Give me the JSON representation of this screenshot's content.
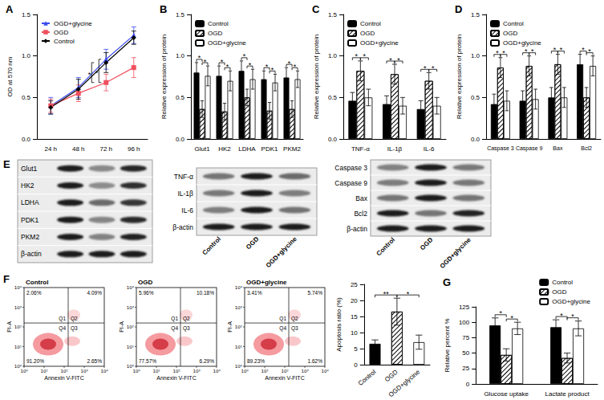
{
  "chart_data": [
    {
      "type": "line",
      "title": "A",
      "y_label": "OD at 570 nm",
      "categories": [
        "24 h",
        "48 h",
        "72 h",
        "96 h"
      ],
      "series": [
        {
          "name": "OGD+glycine",
          "color": "#3b4cf0",
          "marker": "triangle",
          "values": [
            0.4,
            0.62,
            0.96,
            1.25
          ],
          "errors": [
            0.1,
            0.12,
            0.12,
            0.1
          ]
        },
        {
          "name": "OGD",
          "color": "#f0505f",
          "marker": "square",
          "values": [
            0.4,
            0.55,
            0.68,
            0.86
          ],
          "errors": [
            0.08,
            0.1,
            0.1,
            0.12
          ]
        },
        {
          "name": "Control",
          "color": "#000000",
          "marker": "diamond",
          "values": [
            0.38,
            0.6,
            0.92,
            1.22
          ],
          "errors": [
            0.08,
            0.12,
            0.12,
            0.08
          ]
        }
      ],
      "ylim": [
        0,
        1.5
      ],
      "yticks": [
        {
          "value": 0,
          "label": "0.0"
        },
        0.5,
        {
          "value": 1,
          "label": "1.0"
        },
        1.5
      ],
      "grid": false,
      "legend": "upper left",
      "annotations": [
        {
          "x": "72 h",
          "pair": [
            0,
            1
          ],
          "text": "*"
        },
        {
          "x": "72 h",
          "pair": [
            1,
            2
          ],
          "text": "*"
        }
      ]
    },
    {
      "type": "bar",
      "title": "B",
      "y_label": "Relative expression of protein",
      "categories": [
        "Glut1",
        "HK2",
        "LDHA",
        "PDK1",
        "PKM2"
      ],
      "series": [
        {
          "name": "Control",
          "color": "#000000",
          "values": [
            0.8,
            0.76,
            0.82,
            0.72,
            0.74
          ],
          "errors": [
            0.12,
            0.12,
            0.12,
            0.1,
            0.12
          ]
        },
        {
          "name": "OGD",
          "color": "#ffffff",
          "values": [
            0.36,
            0.33,
            0.5,
            0.34,
            0.36
          ],
          "errors": [
            0.1,
            0.1,
            0.1,
            0.1,
            0.1
          ]
        },
        {
          "name": "OGD+glycine",
          "color": "#ffffff",
          "values": [
            0.76,
            0.7,
            0.72,
            0.68,
            0.72
          ],
          "errors": [
            0.12,
            0.12,
            0.12,
            0.1,
            0.1
          ]
        }
      ],
      "ylim": [
        0,
        1.5
      ],
      "yticks": [
        {
          "value": 0,
          "label": "0.0"
        },
        0.5,
        {
          "value": 1,
          "label": "1.0"
        },
        1.5
      ],
      "grid": false,
      "legend": "upper left",
      "significance": [
        {
          "pair": [
            0,
            1
          ],
          "text": "*",
          "categories": [
            "Glut1",
            "HK2",
            "LDHA",
            "PDK1",
            "PKM2"
          ]
        },
        {
          "pair": [
            1,
            2
          ],
          "text": "*",
          "categories": [
            "Glut1",
            "HK2",
            "LDHA",
            "PDK1",
            "PKM2"
          ]
        }
      ]
    },
    {
      "type": "bar",
      "title": "C",
      "y_label": "Relative expression of protein",
      "categories": [
        "TNF-α",
        "IL-1β",
        "IL-6"
      ],
      "series": [
        {
          "name": "Control",
          "color": "#000000",
          "values": [
            0.46,
            0.42,
            0.36
          ],
          "errors": [
            0.1,
            0.1,
            0.1
          ]
        },
        {
          "name": "OGD",
          "color": "#ffffff",
          "values": [
            0.82,
            0.78,
            0.7
          ],
          "errors": [
            0.12,
            0.12,
            0.1
          ]
        },
        {
          "name": "OGD+glycine",
          "color": "#ffffff",
          "values": [
            0.5,
            0.4,
            0.4
          ],
          "errors": [
            0.1,
            0.1,
            0.1
          ]
        }
      ],
      "ylim": [
        0,
        1.5
      ],
      "yticks": [
        {
          "value": 0,
          "label": "0.0"
        },
        0.5,
        {
          "value": 1,
          "label": "1.0"
        },
        1.5
      ],
      "grid": false,
      "legend": "upper left",
      "significance": [
        {
          "pair": [
            0,
            1
          ],
          "text": "*",
          "categories": [
            "TNF-α",
            "IL-1β",
            "IL-6"
          ]
        },
        {
          "pair": [
            1,
            2
          ],
          "text": "*",
          "categories": [
            "TNF-α",
            "IL-1β",
            "IL-6"
          ]
        }
      ]
    },
    {
      "type": "bar",
      "title": "D",
      "y_label": "Relative expression of protein",
      "categories": [
        "Caspase 3",
        "Caspase 9",
        "Bax",
        "Bcl2"
      ],
      "series": [
        {
          "name": "Control",
          "color": "#000000",
          "values": [
            0.42,
            0.46,
            0.5,
            0.9
          ],
          "errors": [
            0.12,
            0.12,
            0.12,
            0.12
          ]
        },
        {
          "name": "OGD",
          "color": "#ffffff",
          "values": [
            0.86,
            0.88,
            0.9,
            0.5
          ],
          "errors": [
            0.12,
            0.12,
            0.12,
            0.12
          ]
        },
        {
          "name": "OGD+glycine",
          "color": "#ffffff",
          "values": [
            0.46,
            0.48,
            0.5,
            0.88
          ],
          "errors": [
            0.12,
            0.12,
            0.12,
            0.12
          ]
        }
      ],
      "ylim": [
        0,
        1.5
      ],
      "yticks": [
        {
          "value": 0,
          "label": "0.0"
        },
        0.5,
        {
          "value": 1,
          "label": "1.0"
        },
        1.5
      ],
      "grid": false,
      "legend": "upper left",
      "significance": [
        {
          "pair": [
            0,
            1
          ],
          "text": "*",
          "categories": [
            "Caspase 3",
            "Caspase 9",
            "Bax",
            "Bcl2"
          ]
        },
        {
          "pair": [
            1,
            2
          ],
          "text": "*",
          "categories": [
            "Caspase 3",
            "Caspase 9",
            "Bax",
            "Bcl2"
          ]
        }
      ]
    },
    {
      "type": "bar",
      "y_label": "Apoptosis ratio (%)",
      "categories": [
        "Control",
        "OGD",
        "OGD+glycine"
      ],
      "values": [
        6.5,
        16.5,
        7.0
      ],
      "errors": [
        1.2,
        4.2,
        2.2
      ],
      "colors": [
        "#000000",
        "#ffffff",
        "#ffffff"
      ],
      "ylim": [
        0,
        25
      ],
      "yticks": [
        0,
        5,
        10,
        15,
        20,
        25
      ],
      "grid": false,
      "significance": [
        {
          "pair": [
            0,
            1
          ],
          "text": "**"
        },
        {
          "pair": [
            1,
            2
          ],
          "text": "*"
        }
      ]
    },
    {
      "type": "bar",
      "title": "G",
      "y_label": "Relative percent %",
      "categories": [
        "Glucose uptake",
        "Lactate product"
      ],
      "series": [
        {
          "name": "Control",
          "color": "#000000",
          "values": [
            95,
            92
          ],
          "errors": [
            12,
            12
          ]
        },
        {
          "name": "OGD",
          "color": "#ffffff",
          "values": [
            47,
            42
          ],
          "errors": [
            10,
            8
          ]
        },
        {
          "name": "OGD+glycine",
          "color": "#ffffff",
          "values": [
            90,
            90
          ],
          "errors": [
            10,
            12
          ]
        }
      ],
      "ylim": [
        0,
        125
      ],
      "yticks": [
        0,
        25,
        50,
        75,
        100,
        125
      ],
      "grid": false,
      "legend": "upper right",
      "significance": [
        {
          "pair": [
            0,
            1
          ],
          "text": "*",
          "categories": [
            "Glucose uptake",
            "Lactate product"
          ]
        },
        {
          "pair": [
            1,
            2
          ],
          "text": "*",
          "categories": [
            "Glucose uptake",
            "Lactate product"
          ]
        }
      ]
    }
  ],
  "blots": {
    "title": "E",
    "panels": [
      {
        "rows": [
          "Glut1",
          "HK2",
          "LDHA",
          "PDK1",
          "PKM2",
          "β-actin"
        ]
      },
      {
        "rows": [
          "TNF-α",
          "IL-1β",
          "IL-6",
          "β-actin"
        ],
        "lanes": [
          "Control",
          "OGD",
          "OGD+glycine"
        ]
      },
      {
        "rows": [
          "Caspase 3",
          "Caspase 9",
          "Bax",
          "Bcl2",
          "β-actin"
        ],
        "lanes": [
          "Control",
          "OGD",
          "OGD+glycine"
        ]
      }
    ]
  },
  "flow": {
    "title": "F",
    "x_label": "Annexin V-FITC",
    "y_label": "PI-A",
    "ticks": [
      "10⁰",
      "10¹",
      "10²",
      "10³",
      "10⁴"
    ],
    "plots": [
      {
        "title": "Control",
        "quadrants": [
          {
            "name": "Q1",
            "value": "2.06%"
          },
          {
            "name": "Q2",
            "value": "4.09%"
          },
          {
            "name": "Q3",
            "value": "2.65%"
          },
          {
            "name": "Q4",
            "value": "91.20%"
          }
        ]
      },
      {
        "title": "OGD",
        "quadrants": [
          {
            "name": "Q1",
            "value": "5.96%"
          },
          {
            "name": "Q2",
            "value": "10.18%"
          },
          {
            "name": "Q3",
            "value": "6.29%"
          },
          {
            "name": "Q4",
            "value": "77.57%"
          }
        ]
      },
      {
        "title": "OGD+glycine",
        "quadrants": [
          {
            "name": "Q1",
            "value": "3.41%"
          },
          {
            "name": "Q2",
            "value": "5.74%"
          },
          {
            "name": "Q3",
            "value": "1.62%"
          },
          {
            "name": "Q4",
            "value": "89.23%"
          }
        ]
      }
    ]
  }
}
